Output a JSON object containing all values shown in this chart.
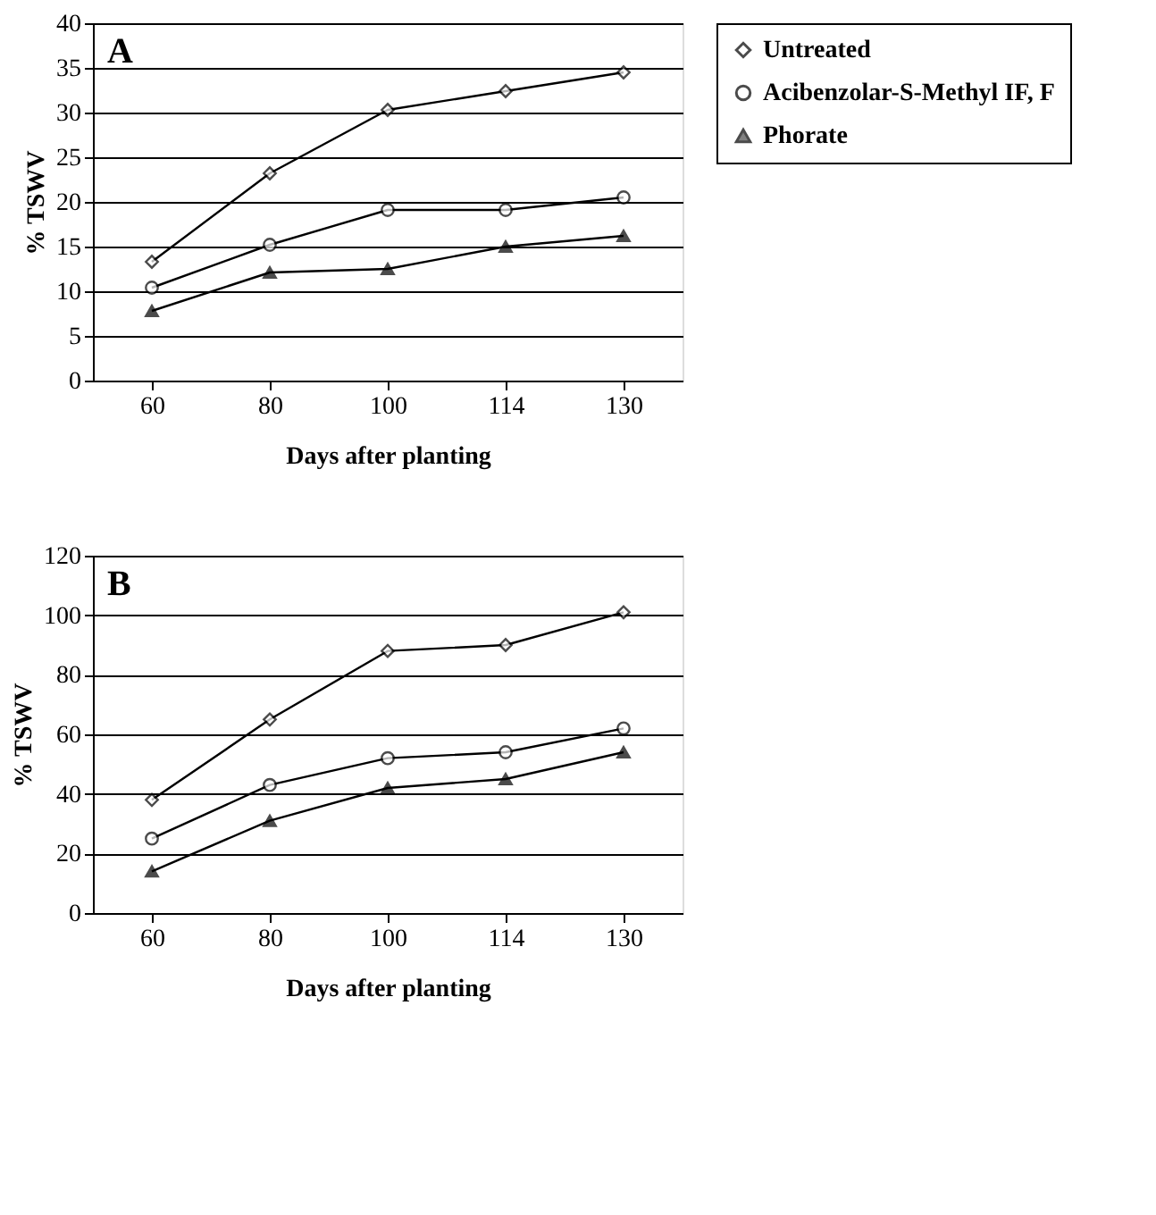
{
  "chart_data": [
    {
      "type": "line",
      "categories": [
        "60",
        "80",
        "100",
        "114",
        "130"
      ],
      "xlabel": "Days after planting",
      "ylabel": "% TSWV",
      "ylim": [
        0,
        40
      ],
      "yticks": [
        0,
        5,
        10,
        15,
        20,
        25,
        30,
        35,
        40
      ],
      "grid": "y",
      "legend": "right",
      "line_style": "solid",
      "annotations": [
        "A"
      ],
      "series": [
        {
          "name": "Untreated",
          "color": "#000000",
          "marker": "diamond",
          "values": [
            13.3,
            23.2,
            30.3,
            32.4,
            34.5
          ]
        },
        {
          "name": "Acibenzolar-S-Methyl IF, F",
          "color": "#000000",
          "marker": "circle",
          "values": [
            10.4,
            15.2,
            19.1,
            19.1,
            20.5
          ]
        },
        {
          "name": "Phorate",
          "color": "#000000",
          "marker": "triangle",
          "values": [
            7.8,
            12.1,
            12.5,
            15.0,
            16.2
          ]
        }
      ]
    },
    {
      "type": "line",
      "categories": [
        "60",
        "80",
        "100",
        "114",
        "130"
      ],
      "xlabel": "Days after planting",
      "ylabel": "% TSWV",
      "ylim": [
        0,
        120
      ],
      "yticks": [
        0,
        20,
        40,
        60,
        80,
        100,
        120
      ],
      "grid": "y",
      "legend": "right",
      "line_style": "solid",
      "annotations": [
        "B"
      ],
      "series": [
        {
          "name": "Untreated",
          "color": "#000000",
          "marker": "diamond",
          "values": [
            38,
            65,
            88,
            90,
            101
          ]
        },
        {
          "name": "Acibenzolar-S-Methyl IF, F",
          "color": "#000000",
          "marker": "circle",
          "values": [
            25,
            43,
            52,
            54,
            62
          ]
        },
        {
          "name": "Phorate",
          "color": "#000000",
          "marker": "triangle",
          "values": [
            14,
            31,
            42,
            45,
            54
          ]
        }
      ]
    }
  ]
}
